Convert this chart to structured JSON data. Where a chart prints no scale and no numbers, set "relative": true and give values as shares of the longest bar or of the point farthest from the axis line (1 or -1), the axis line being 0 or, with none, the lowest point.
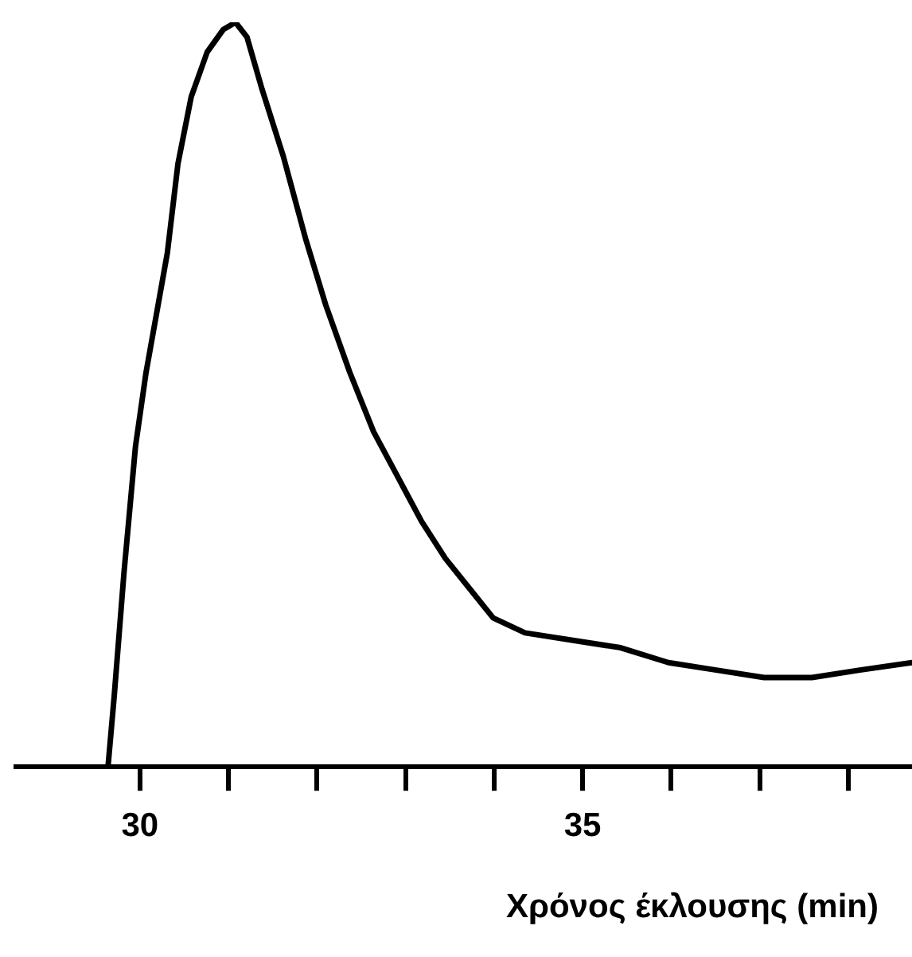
{
  "chart_data": {
    "type": "line",
    "relative": true,
    "xlabel": "Χρόνος έκλουσης (min)",
    "xlim": [
      28.6,
      38.72
    ],
    "xticks": [
      30,
      {
        "value": 31,
        "label": null
      },
      {
        "value": 32,
        "label": null
      },
      {
        "value": 33,
        "label": null
      },
      {
        "value": 34,
        "label": null
      },
      35,
      {
        "value": 36,
        "label": null
      },
      {
        "value": 37,
        "label": null
      },
      {
        "value": 38,
        "label": null
      }
    ],
    "grid": false,
    "legend": false,
    "marker": "none",
    "line_style": "solid",
    "series": [
      {
        "color": "#000000",
        "x": [
          29.64,
          29.71,
          29.82,
          29.95,
          30.07,
          30.22,
          30.31,
          30.43,
          30.58,
          30.76,
          30.94,
          31.08,
          31.21,
          31.38,
          31.62,
          31.87,
          32.1,
          32.37,
          32.64,
          32.91,
          33.18,
          33.45,
          33.72,
          33.99,
          34.35,
          34.89,
          35.43,
          35.97,
          36.51,
          37.05,
          37.59,
          38.13,
          38.72
        ],
        "values": [
          0,
          0.095,
          0.26,
          0.43,
          0.53,
          0.63,
          0.69,
          0.81,
          0.9,
          0.96,
          0.99,
          1,
          0.98,
          0.91,
          0.82,
          0.71,
          0.62,
          0.53,
          0.45,
          0.39,
          0.33,
          0.28,
          0.24,
          0.2,
          0.18,
          0.17,
          0.16,
          0.14,
          0.13,
          0.12,
          0.12,
          0.13,
          0.14
        ]
      }
    ]
  }
}
